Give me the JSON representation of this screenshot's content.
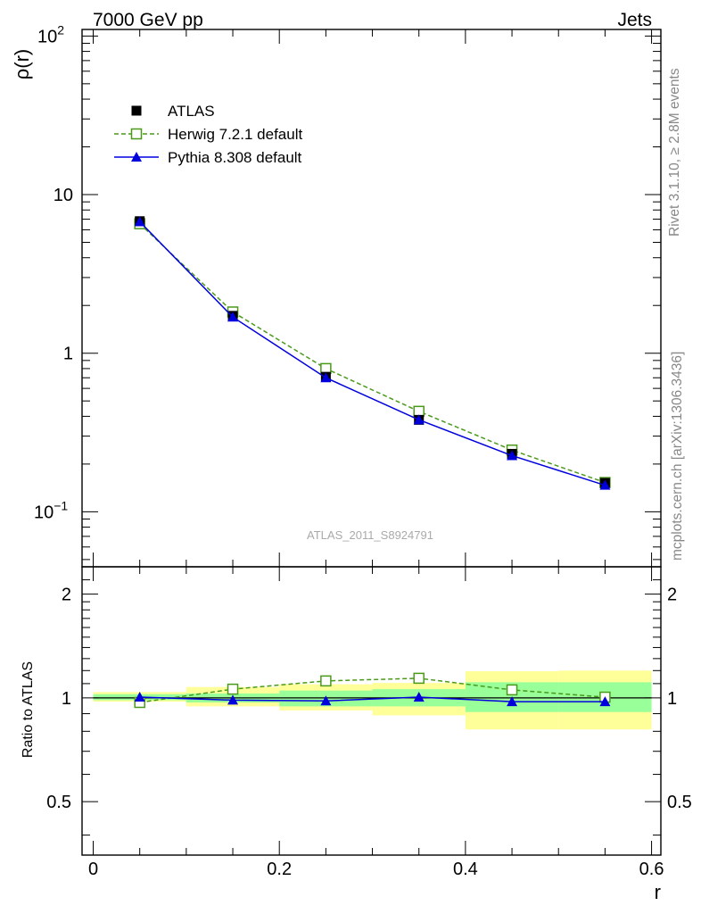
{
  "header": {
    "left": "7000 GeV pp",
    "right": "Jets"
  },
  "side_labels": {
    "rivet": "Rivet 3.1.10, ≥ 2.8M events",
    "mcplots": "mcplots.cern.ch [arXiv:1306.3436]"
  },
  "watermark": "ATLAS_2011_S8924791",
  "colors": {
    "atlas": "#000000",
    "herwig": "#4a9a1a",
    "pythia": "#0000dd",
    "band_inner": "#99ff99",
    "band_outer": "#ffff99"
  },
  "chart_data": [
    {
      "type": "line",
      "panel": "main",
      "ylabel": "ρ(r)",
      "yscale": "log",
      "ylim": [
        0.045,
        110
      ],
      "xlim": [
        -0.012,
        0.61
      ],
      "yticks": [
        {
          "v": 0.1,
          "base": "10",
          "exp": "−1"
        },
        {
          "v": 1,
          "base": "1",
          "exp": ""
        },
        {
          "v": 10,
          "base": "10",
          "exp": ""
        },
        {
          "v": 100,
          "base": "10",
          "exp": "2"
        }
      ],
      "legend_position": "top-left",
      "x": [
        0.05,
        0.15,
        0.25,
        0.35,
        0.45,
        0.55
      ],
      "series": [
        {
          "name": "ATLAS",
          "style": "data",
          "values": [
            6.8,
            1.72,
            0.71,
            0.38,
            0.232,
            0.152
          ]
        },
        {
          "name": "Herwig 7.2.1 default",
          "style": "herwig",
          "values": [
            6.55,
            1.82,
            0.8,
            0.43,
            0.245,
            0.153
          ]
        },
        {
          "name": "Pythia 8.308 default",
          "style": "pythia",
          "values": [
            6.75,
            1.69,
            0.7,
            0.38,
            0.226,
            0.147
          ]
        }
      ]
    },
    {
      "type": "line",
      "panel": "ratio",
      "ylabel": "Ratio to ATLAS",
      "xlabel": "r",
      "ylim": [
        0.35,
        2.4
      ],
      "xlim": [
        -0.012,
        0.61
      ],
      "yscale": "log",
      "yticks": [
        {
          "v": 0.5,
          "label": "0.5"
        },
        {
          "v": 1,
          "label": "1"
        },
        {
          "v": 2,
          "label": "2"
        }
      ],
      "xticks": [
        {
          "v": 0,
          "label": "0"
        },
        {
          "v": 0.2,
          "label": "0.2"
        },
        {
          "v": 0.4,
          "label": "0.4"
        },
        {
          "v": 0.6,
          "label": "0.6"
        }
      ],
      "x": [
        0.05,
        0.15,
        0.25,
        0.35,
        0.45,
        0.55
      ],
      "bins": [
        [
          0.0,
          0.1
        ],
        [
          0.1,
          0.2
        ],
        [
          0.2,
          0.3
        ],
        [
          0.3,
          0.4
        ],
        [
          0.4,
          0.5
        ],
        [
          0.5,
          0.6
        ]
      ],
      "band_inner": [
        [
          0.985,
          1.025
        ],
        [
          0.97,
          1.03
        ],
        [
          0.945,
          1.05
        ],
        [
          0.945,
          1.06
        ],
        [
          0.91,
          1.11
        ],
        [
          0.91,
          1.11
        ]
      ],
      "band_outer": [
        [
          0.975,
          1.04
        ],
        [
          0.945,
          1.075
        ],
        [
          0.92,
          1.095
        ],
        [
          0.89,
          1.105
        ],
        [
          0.81,
          1.195
        ],
        [
          0.81,
          1.2
        ]
      ],
      "series": [
        {
          "name": "Herwig 7.2.1 default",
          "style": "herwig",
          "values": [
            0.97,
            1.06,
            1.12,
            1.14,
            1.055,
            1.005
          ]
        },
        {
          "name": "Pythia 8.308 default",
          "style": "pythia",
          "values": [
            1.005,
            0.985,
            0.98,
            1.005,
            0.975,
            0.975
          ]
        }
      ]
    }
  ]
}
